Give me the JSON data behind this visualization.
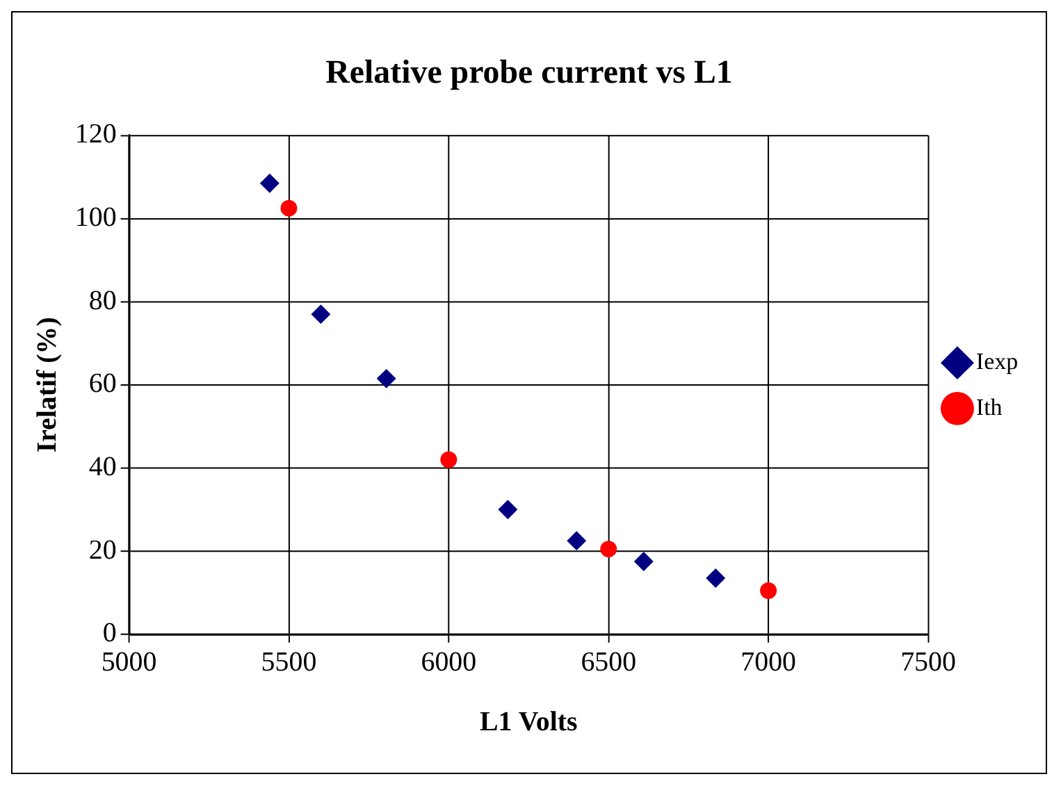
{
  "chart_data": {
    "type": "scatter",
    "title": "Relative probe current vs L1",
    "xlabel": "L1 Volts",
    "ylabel": "Irelatif (%)",
    "xlim": [
      5000,
      7500
    ],
    "xticks": [
      5000,
      5500,
      6000,
      6500,
      7000,
      7500
    ],
    "ylim": [
      0,
      120
    ],
    "yticks": [
      0,
      20,
      40,
      60,
      80,
      100,
      120
    ],
    "grid": true,
    "legend": "right",
    "series": [
      {
        "name": "Iexp",
        "color": "#000080",
        "marker": "diamond",
        "x": [
          5440,
          5600,
          5805,
          5990,
          6185,
          6400,
          6610,
          6835
        ],
        "values": [
          108.5,
          77,
          61.5,
          null,
          30,
          22.5,
          17.5,
          13.5
        ]
      },
      {
        "name": "Ith",
        "color": "#ff0000",
        "marker": "circle",
        "x": [
          5500,
          6000,
          6500,
          7000
        ],
        "values": [
          102.5,
          42,
          20.5,
          10.5
        ]
      }
    ]
  }
}
